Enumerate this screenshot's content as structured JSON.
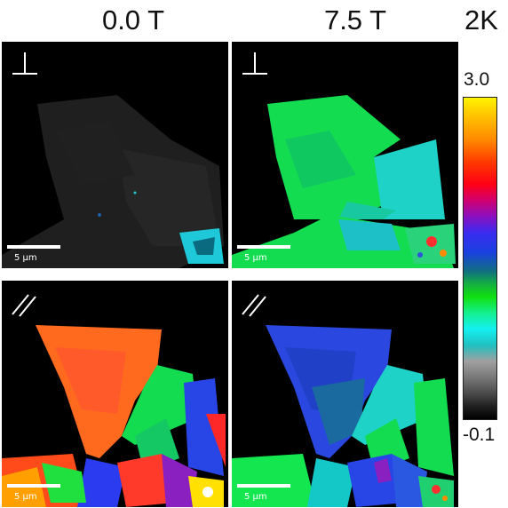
{
  "columns": {
    "left_title": "0.0 T",
    "right_title": "7.5 T"
  },
  "temperature_label": "2K",
  "colorbar": {
    "max_label": "3.0",
    "min_label": "-0.1"
  },
  "panels": [
    {
      "field": "0.0 T",
      "orientation": "perpendicular",
      "scale_label": "5 μm"
    },
    {
      "field": "7.5 T",
      "orientation": "perpendicular",
      "scale_label": "5 μm"
    },
    {
      "field": "0.0 T",
      "orientation": "parallel",
      "scale_label": "5 μm"
    },
    {
      "field": "7.5 T",
      "orientation": "parallel",
      "scale_label": "5 μm"
    }
  ],
  "colors": {
    "background": "#000000",
    "green": "#14e650",
    "cyan": "#1ed2c8",
    "orange": "#ff6a1e",
    "blue": "#2846e6",
    "red": "#ff2828",
    "gray": "#3a3a3a"
  }
}
